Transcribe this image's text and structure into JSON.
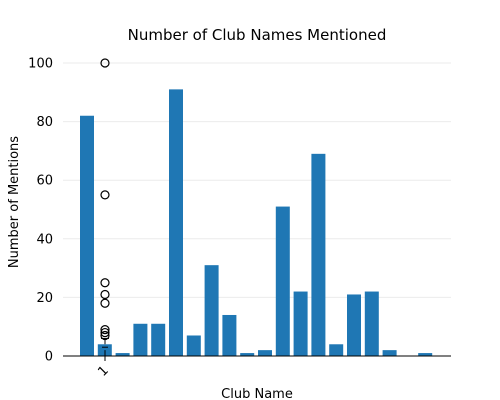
{
  "chart_data": {
    "type": "bar",
    "title": "Number of Club Names Mentioned",
    "xlabel": "Club Name",
    "ylabel": "Number of Mentions",
    "ylim": [
      0,
      100
    ],
    "yticks": [
      0,
      20,
      40,
      60,
      80,
      100
    ],
    "grid": true,
    "bar_color": "#1f77b4",
    "values": [
      82,
      4,
      1,
      11,
      11,
      91,
      7,
      31,
      14,
      1,
      2,
      51,
      22,
      69,
      4,
      21,
      22,
      2,
      0,
      1
    ],
    "boxplot": {
      "category_label": "1",
      "median": 3,
      "q1": 2,
      "q3": 4,
      "whisker_low": 0,
      "whisker_high": 6,
      "outliers": [
        100,
        55,
        25,
        21,
        18,
        9,
        8,
        7
      ]
    }
  }
}
